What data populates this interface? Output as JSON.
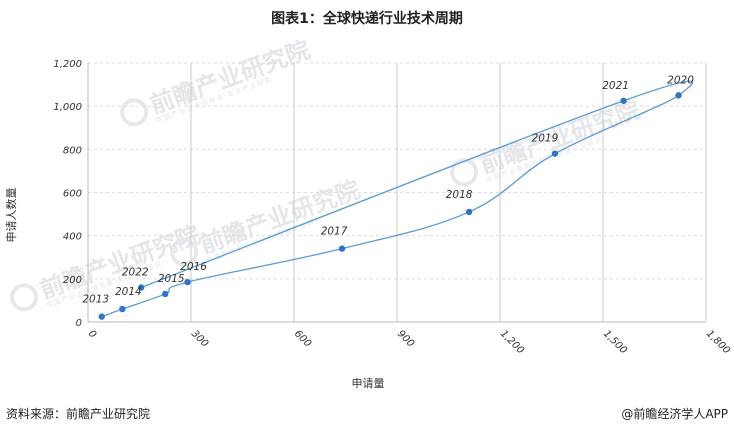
{
  "title": "图表1：全球快递行业技术周期",
  "source": "资料来源：前瞻产业研究院",
  "brand": "@前瞻经济学人APP",
  "watermark": {
    "text": "前瞻产业研究院",
    "subtext": "中国产业咨询领导者·专注产业研究"
  },
  "chart_data": {
    "type": "line",
    "title": "图表1：全球快递行业技术周期",
    "xlabel": "申请量",
    "ylabel": "申请人数量",
    "xlim": [
      0,
      1800
    ],
    "ylim": [
      0,
      1200
    ],
    "x_ticks": [
      0,
      300,
      600,
      900,
      1200,
      1500,
      1800
    ],
    "x_tick_labels": [
      "0",
      "300",
      "600",
      "900",
      "1,200",
      "1,500",
      "1,800"
    ],
    "y_ticks": [
      0,
      200,
      400,
      600,
      800,
      1000,
      1200
    ],
    "y_tick_labels": [
      "0",
      "200",
      "400",
      "600",
      "800",
      "1,000",
      "1,200"
    ],
    "grid": true,
    "line_color": "#5b9bd5",
    "point_color": "#2e75c9",
    "series": [
      {
        "points": [
          {
            "label": "2013",
            "x": 40,
            "y": 25
          },
          {
            "label": "2014",
            "x": 100,
            "y": 60
          },
          {
            "label": "2015",
            "x": 225,
            "y": 130
          },
          {
            "label": "2016",
            "x": 290,
            "y": 185
          },
          {
            "label": "2017",
            "x": 740,
            "y": 340
          },
          {
            "label": "2018",
            "x": 1110,
            "y": 510
          },
          {
            "label": "2019",
            "x": 1360,
            "y": 780
          },
          {
            "label": "2020",
            "x": 1720,
            "y": 1050
          },
          {
            "label": "2021",
            "x": 1560,
            "y": 1025
          },
          {
            "label": "2022",
            "x": 155,
            "y": 160
          }
        ]
      }
    ]
  }
}
